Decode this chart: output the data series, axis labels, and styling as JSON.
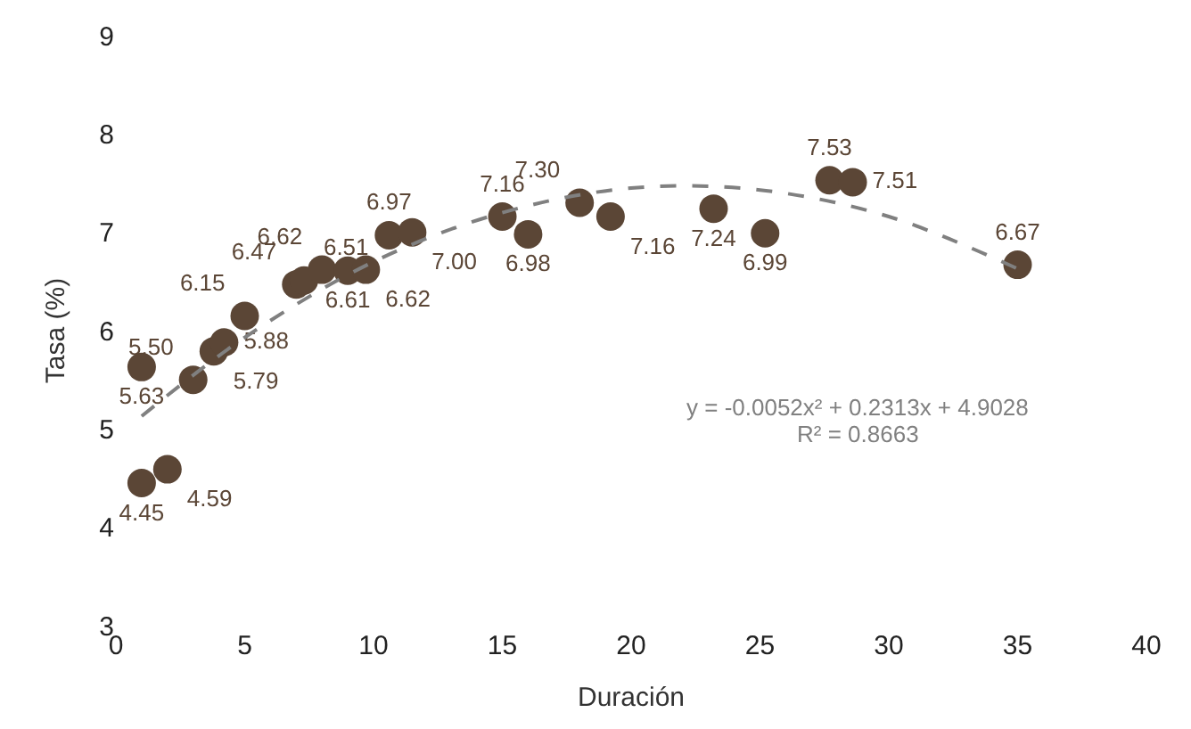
{
  "chart_data": {
    "type": "scatter",
    "xlabel": "Duración",
    "ylabel": "Tasa (%)",
    "series": [
      {
        "color": "#5b4636",
        "marker": "circle",
        "value_labels": [
          "4.45",
          "5.63",
          "4.59",
          "5.50",
          "5.79",
          "5.88",
          "6.15",
          "6.47",
          "6.51",
          "6.62",
          "6.61",
          "6.62",
          "6.97",
          "7.00",
          "7.16",
          "6.98",
          "7.30",
          "7.16",
          "7.24",
          "6.99",
          "7.53",
          "7.51",
          "6.67"
        ],
        "x": [
          1,
          1,
          2,
          3,
          3.8,
          4.2,
          5,
          7,
          7.3,
          8,
          9,
          9.7,
          10.6,
          11.5,
          15,
          16,
          18,
          19.2,
          23.2,
          25.2,
          27.7,
          28.6,
          35
        ],
        "values": [
          4.45,
          5.63,
          4.59,
          5.5,
          5.79,
          5.88,
          6.15,
          6.47,
          6.51,
          6.62,
          6.61,
          6.62,
          6.97,
          7.0,
          7.16,
          6.98,
          7.3,
          7.16,
          7.24,
          6.99,
          7.53,
          7.51,
          6.67
        ]
      },
      {
        "type": "line",
        "color": "#808080",
        "line_style": "dashed",
        "marker": "none",
        "x": [
          1,
          5,
          10,
          15,
          20,
          25,
          30,
          35
        ],
        "values": [
          5.13,
          5.93,
          6.7,
          7.2,
          7.45,
          7.43,
          7.16,
          6.63
        ]
      }
    ],
    "xlim": [
      0,
      40
    ],
    "xticks": [
      0,
      5,
      10,
      15,
      20,
      25,
      30,
      35,
      40
    ],
    "ylim": [
      3,
      9
    ],
    "yticks": [
      3,
      4,
      5,
      6,
      7,
      8,
      9
    ],
    "legend": false,
    "annotations": [
      "y = -0.0052x² + 0.2313x + 4.9028",
      "R² = 0.8663"
    ]
  }
}
